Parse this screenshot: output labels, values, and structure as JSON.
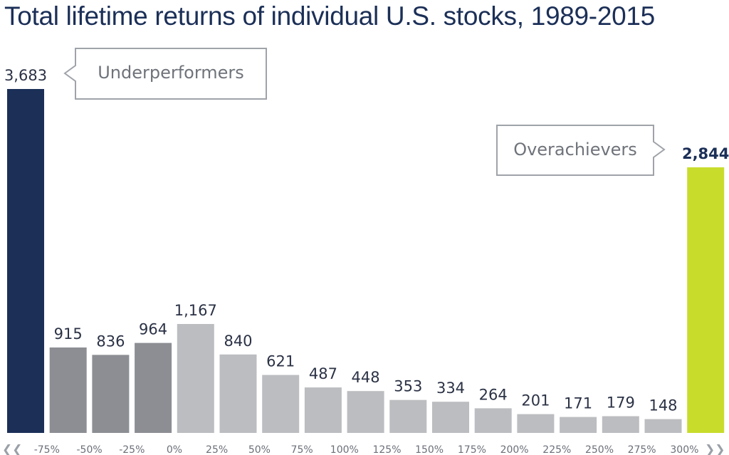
{
  "chart_data": {
    "type": "bar",
    "title": "Total lifetime returns of individual U.S. stocks, 1989-2015",
    "categories": [
      "",
      "-75%",
      "-50%",
      "-25%",
      "0%",
      "25%",
      "50%",
      "75%",
      "100%",
      "125%",
      "150%",
      "175%",
      "200%",
      "225%",
      "250%",
      "275%",
      "300%"
    ],
    "values": [
      3683,
      915,
      836,
      964,
      1167,
      840,
      621,
      487,
      448,
      353,
      334,
      264,
      201,
      171,
      179,
      148,
      2844
    ],
    "value_labels": [
      "3,683",
      "915",
      "836",
      "964",
      "1,167",
      "840",
      "621",
      "487",
      "448",
      "353",
      "334",
      "264",
      "201",
      "171",
      "179",
      "148",
      "2,844"
    ],
    "bar_colors": [
      "#1b2f57",
      "#8c8e93",
      "#8c8e93",
      "#8c8e93",
      "#bcbdc0",
      "#bcbdc0",
      "#bcbdc0",
      "#bcbdc0",
      "#bcbdc0",
      "#bcbdc0",
      "#bcbdc0",
      "#bcbdc0",
      "#bcbdc0",
      "#bcbdc0",
      "#bcbdc0",
      "#bcbdc0",
      "#c8dc2c"
    ],
    "ylim": [
      0,
      3683
    ],
    "grid": false,
    "legend": "none",
    "annotations": {
      "underperformers": "Underperformers",
      "overachievers": "Overachievers"
    },
    "axis_arrows": {
      "left": "❮❮",
      "right": "❯❯"
    }
  }
}
